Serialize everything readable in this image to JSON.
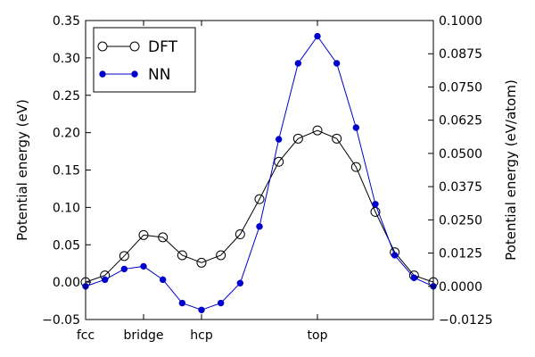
{
  "chart_data": {
    "type": "line",
    "categories_ticks": [
      "fcc",
      "bridge",
      "hcp",
      "top"
    ],
    "category_tick_positions": [
      0,
      3,
      6,
      12
    ],
    "x": [
      0,
      1,
      2,
      3,
      4,
      5,
      6,
      7,
      8,
      9,
      10,
      11,
      12,
      13,
      14,
      15,
      16,
      17,
      18
    ],
    "xlim": [
      0,
      18
    ],
    "ylim_left": [
      -0.05,
      0.35
    ],
    "ylim_right": [
      -0.0125,
      0.1
    ],
    "left_ticks": [
      "−0.05",
      "0.00",
      "0.05",
      "0.10",
      "0.15",
      "0.20",
      "0.25",
      "0.30",
      "0.35"
    ],
    "left_tick_values": [
      -0.05,
      0,
      0.05,
      0.1,
      0.15,
      0.2,
      0.25,
      0.3,
      0.35
    ],
    "right_ticks": [
      "−0.0125",
      "0.0000",
      "0.0125",
      "0.0250",
      "0.0375",
      "0.0500",
      "0.0625",
      "0.0750",
      "0.0875",
      "0.1000"
    ],
    "right_tick_values": [
      -0.0125,
      0,
      0.0125,
      0.025,
      0.0375,
      0.05,
      0.0625,
      0.075,
      0.0875,
      0.1
    ],
    "ylabel_left": "Potential energy (eV)",
    "ylabel_right": "Potential energy (eV/atom)",
    "legend_position": "top-left",
    "series": [
      {
        "name": "DFT",
        "axis": "left",
        "color": "#000000",
        "marker": "open-circle",
        "values": [
          0.0,
          0.009,
          0.035,
          0.063,
          0.06,
          0.036,
          0.026,
          0.036,
          0.064,
          0.111,
          0.161,
          0.192,
          0.203,
          0.192,
          0.154,
          0.094,
          0.04,
          0.009,
          0.0
        ]
      },
      {
        "name": "NN",
        "axis": "right",
        "color": "#0000cc",
        "marker": "filled-circle",
        "values": [
          0.0,
          0.0025,
          0.0065,
          0.0075,
          0.0025,
          -0.0063,
          -0.0089,
          -0.0063,
          0.0012,
          0.0225,
          0.0553,
          0.0839,
          0.0941,
          0.0839,
          0.0597,
          0.0309,
          0.0117,
          0.0032,
          0.0
        ]
      }
    ]
  }
}
